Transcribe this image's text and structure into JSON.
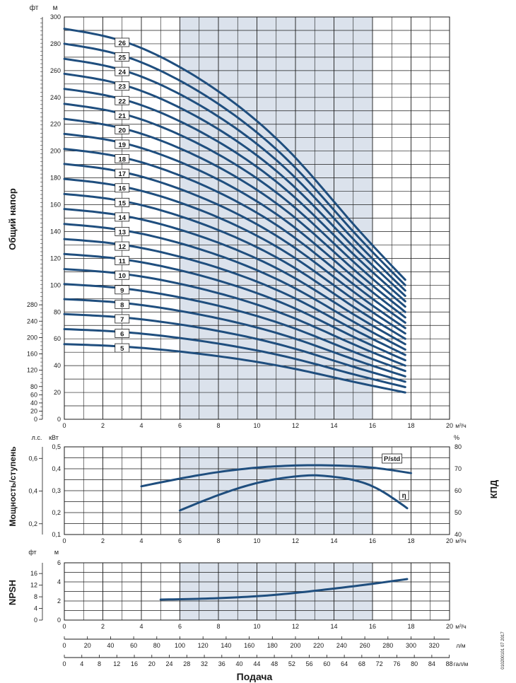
{
  "colors": {
    "curve": "#1f4e7e",
    "grid": "#1a1a1a",
    "band": "#dbe2ec",
    "text": "#1a1a1a"
  },
  "footnote": "010200101 07 2017",
  "chart_data": [
    {
      "type": "line",
      "name": "head",
      "ylabel": "Общий напор",
      "unit_left": "фт",
      "unit_right": "м",
      "xunit": "м³/ч",
      "xlim": [
        0,
        20
      ],
      "ylim": [
        0,
        300
      ],
      "xticks": [
        0,
        2,
        4,
        6,
        8,
        10,
        12,
        14,
        16,
        18,
        20
      ],
      "yticks_m": [
        0,
        20,
        40,
        60,
        80,
        100,
        120,
        140,
        160,
        180,
        200,
        220,
        240,
        260,
        280,
        300
      ],
      "yticks_ft": [
        0,
        20,
        40,
        60,
        80,
        120,
        160,
        200,
        240,
        280
      ],
      "highlight_x": [
        6,
        16
      ],
      "shutoff_head_per_stage": 11.2,
      "stages": [
        5,
        6,
        7,
        8,
        9,
        10,
        11,
        12,
        13,
        14,
        15,
        16,
        17,
        18,
        19,
        20,
        21,
        22,
        23,
        24,
        25,
        26
      ],
      "flow_points": [
        0,
        3,
        6,
        9,
        12,
        15,
        17.7
      ],
      "head_per_stage_m": [
        11.2,
        10.85,
        10.1,
        9.0,
        7.5,
        5.6,
        4.0
      ]
    },
    {
      "type": "line",
      "name": "power-efficiency",
      "ylabel": "Мощность/ступень",
      "y2label": "КПД",
      "unit_hp": "л.с.",
      "unit_kw": "кВт",
      "unit_pct": "%",
      "xunit": "м³/ч",
      "xlim": [
        0,
        20
      ],
      "ylim_kw": [
        0.1,
        0.5
      ],
      "ylim_pct": [
        40,
        80
      ],
      "xticks": [
        0,
        2,
        4,
        6,
        8,
        10,
        12,
        14,
        16,
        18,
        20
      ],
      "yticks_kw": [
        "0,1",
        "0,2",
        "0,3",
        "0,4",
        "0,5"
      ],
      "yticks_hp": [
        "0,2",
        "0,4",
        "0,6"
      ],
      "yticks_pct": [
        40,
        50,
        60,
        70,
        80
      ],
      "series": [
        {
          "name": "P/std",
          "x": [
            4,
            6,
            8,
            10,
            12,
            14,
            16,
            18
          ],
          "y": [
            0.32,
            0.355,
            0.385,
            0.405,
            0.415,
            0.415,
            0.405,
            0.38
          ]
        },
        {
          "name": "η",
          "x": [
            6,
            8,
            10,
            12,
            13,
            14,
            16,
            17.8
          ],
          "y": [
            51,
            58,
            63.5,
            66.5,
            67,
            66.3,
            62,
            52
          ]
        }
      ]
    },
    {
      "type": "line",
      "name": "npsh",
      "ylabel": "NPSH",
      "unit_left": "фт",
      "unit_right": "м",
      "xunit": "м³/ч",
      "xlim": [
        0,
        20
      ],
      "ylim": [
        0,
        6
      ],
      "xticks": [
        0,
        2,
        4,
        6,
        8,
        10,
        12,
        14,
        16,
        18,
        20
      ],
      "yticks_m": [
        0,
        2,
        4,
        6
      ],
      "yticks_ft": [
        0,
        4,
        8,
        12,
        16
      ],
      "series": [
        {
          "name": "NPSH",
          "x": [
            5,
            6,
            8,
            10,
            12,
            14,
            16,
            17.8
          ],
          "y": [
            2.15,
            2.18,
            2.3,
            2.5,
            2.85,
            3.3,
            3.8,
            4.3
          ]
        }
      ]
    }
  ],
  "flow_axes": {
    "xlabel": "Подача",
    "lm": {
      "unit": "л/м",
      "ticks": [
        0,
        20,
        40,
        60,
        80,
        100,
        120,
        140,
        160,
        180,
        200,
        220,
        240,
        260,
        280,
        300,
        320
      ]
    },
    "gpm": {
      "unit": "гал/м",
      "ticks": [
        0,
        4,
        8,
        12,
        16,
        20,
        24,
        28,
        32,
        36,
        40,
        44,
        48,
        52,
        56,
        60,
        64,
        68,
        72,
        76,
        80,
        84,
        88
      ]
    }
  }
}
